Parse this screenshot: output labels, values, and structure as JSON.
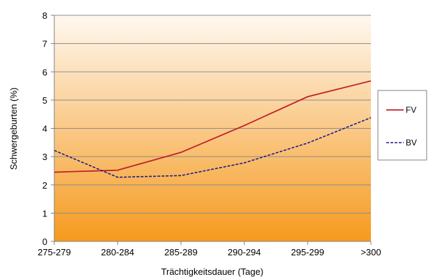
{
  "chart_data": {
    "type": "line",
    "categories": [
      "275-279",
      "280-284",
      "285-289",
      "290-294",
      "295-299",
      ">300"
    ],
    "series": [
      {
        "name": "FV",
        "values": [
          2.45,
          2.52,
          3.15,
          4.1,
          5.12,
          5.68
        ],
        "color": "#c0202a",
        "dash": "solid"
      },
      {
        "name": "BV",
        "values": [
          3.22,
          2.27,
          2.33,
          2.78,
          3.48,
          4.38
        ],
        "color": "#1a1a8c",
        "dash": "dashed"
      }
    ],
    "xlabel": "Trächtigkeitsdauer (Tage)",
    "ylabel": "Schwergeburten (%)",
    "ylim": [
      0,
      8
    ],
    "yticks": [
      0,
      1,
      2,
      3,
      4,
      5,
      6,
      7,
      8
    ],
    "grid": true,
    "legend_position": "right",
    "background_gradient": [
      "#fff8f0",
      "#f59a1e"
    ]
  }
}
